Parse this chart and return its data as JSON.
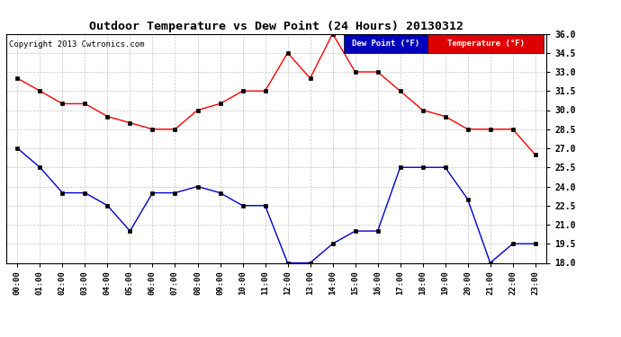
{
  "title": "Outdoor Temperature vs Dew Point (24 Hours) 20130312",
  "copyright": "Copyright 2013 Cwtronics.com",
  "hours": [
    "00:00",
    "01:00",
    "02:00",
    "03:00",
    "04:00",
    "05:00",
    "06:00",
    "07:00",
    "08:00",
    "09:00",
    "10:00",
    "11:00",
    "12:00",
    "13:00",
    "14:00",
    "15:00",
    "16:00",
    "17:00",
    "18:00",
    "19:00",
    "20:00",
    "21:00",
    "22:00",
    "23:00"
  ],
  "temperature": [
    32.5,
    31.5,
    30.5,
    30.5,
    29.5,
    29.0,
    28.5,
    28.5,
    30.0,
    30.5,
    31.5,
    31.5,
    34.5,
    32.5,
    36.0,
    33.0,
    33.0,
    31.5,
    30.0,
    29.5,
    28.5,
    28.5,
    28.5,
    26.5
  ],
  "dew_point": [
    27.0,
    25.5,
    23.5,
    23.5,
    22.5,
    20.5,
    23.5,
    23.5,
    24.0,
    23.5,
    22.5,
    22.5,
    18.0,
    18.0,
    19.5,
    20.5,
    20.5,
    25.5,
    25.5,
    25.5,
    23.0,
    18.0,
    19.5,
    19.5
  ],
  "temp_color": "#ff0000",
  "dew_color": "#0000cc",
  "bg_color": "#ffffff",
  "plot_bg_color": "#ffffff",
  "grid_color": "#aaaaaa",
  "ylim_min": 18.0,
  "ylim_max": 36.0,
  "ytick_step": 1.5,
  "legend_dew_label": "Dew Point (°F)",
  "legend_temp_label": "Temperature (°F)",
  "legend_dew_bg": "#0000bb",
  "legend_temp_bg": "#dd0000"
}
